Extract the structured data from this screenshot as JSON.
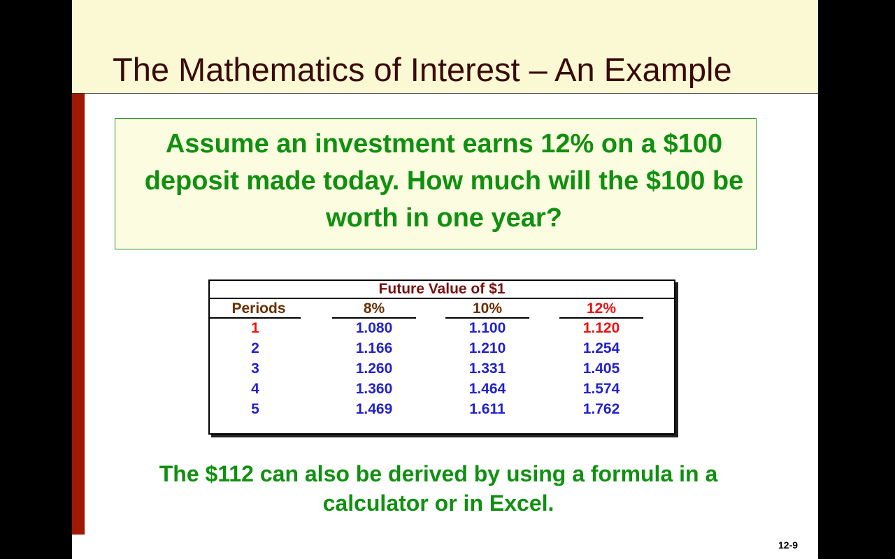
{
  "title": "The Mathematics of Interest – An Example",
  "question": "Assume an investment earns 12% on a $100 deposit made today.  How much will the $100 be worth in one year?",
  "table": {
    "title": "Future Value of $1",
    "headers": [
      "Periods",
      "8%",
      "10%",
      "12%"
    ],
    "rows": [
      [
        "1",
        "1.080",
        "1.100",
        "1.120"
      ],
      [
        "2",
        "1.166",
        "1.210",
        "1.254"
      ],
      [
        "3",
        "1.260",
        "1.331",
        "1.405"
      ],
      [
        "4",
        "1.360",
        "1.464",
        "1.574"
      ],
      [
        "5",
        "1.469",
        "1.611",
        "1.762"
      ]
    ],
    "highlight_row": 0,
    "highlight_column": 3,
    "highlight_color": "#ee1111"
  },
  "footer_text": "The $112 can also be derived by using a formula in a calculator or in Excel.",
  "page_number": "12-9",
  "colors": {
    "header_bg": "#fbf8d4",
    "accent_bar": "#a01800",
    "text_green": "#109010",
    "value_blue": "#2222cc"
  }
}
